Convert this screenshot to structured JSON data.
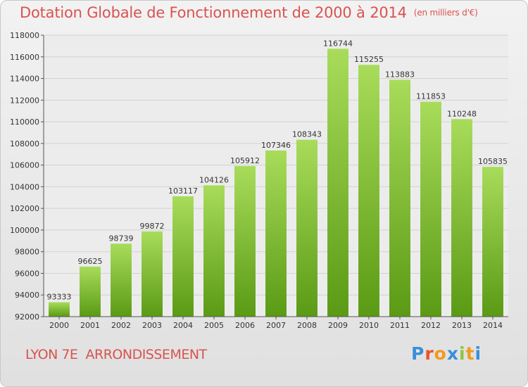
{
  "header": {
    "title": "Dotation Globale de Fonctionnement de 2000 à 2014",
    "unit": "(en milliers d'€)"
  },
  "footer": {
    "city": "LYON 7E  ARRONDISSEMENT",
    "logo_letters": [
      "P",
      "r",
      "o",
      "x",
      "i",
      "t",
      "i"
    ],
    "logo_colors": [
      "#3a8fd9",
      "#e8542c",
      "#f29a1f",
      "#3a8fd9",
      "#8cc63f",
      "#f29a1f",
      "#3a8fd9"
    ]
  },
  "colors": {
    "bar_top": "#a8dc5a",
    "bar_bottom": "#5a9a14",
    "title": "#d9534f"
  },
  "chart_data": {
    "type": "bar",
    "title": "Dotation Globale de Fonctionnement de 2000 à 2014",
    "xlabel": "",
    "ylabel": "",
    "ylim": [
      92000,
      118000
    ],
    "yticks": [
      92000,
      94000,
      96000,
      98000,
      100000,
      102000,
      104000,
      106000,
      108000,
      110000,
      112000,
      114000,
      116000,
      118000
    ],
    "grid": true,
    "categories": [
      "2000",
      "2001",
      "2002",
      "2003",
      "2004",
      "2005",
      "2006",
      "2007",
      "2008",
      "2009",
      "2010",
      "2011",
      "2012",
      "2013",
      "2014"
    ],
    "values": [
      93333,
      96625,
      98739,
      99872,
      103117,
      104126,
      105912,
      107346,
      108343,
      116744,
      115255,
      113883,
      111853,
      110248,
      105835
    ]
  }
}
